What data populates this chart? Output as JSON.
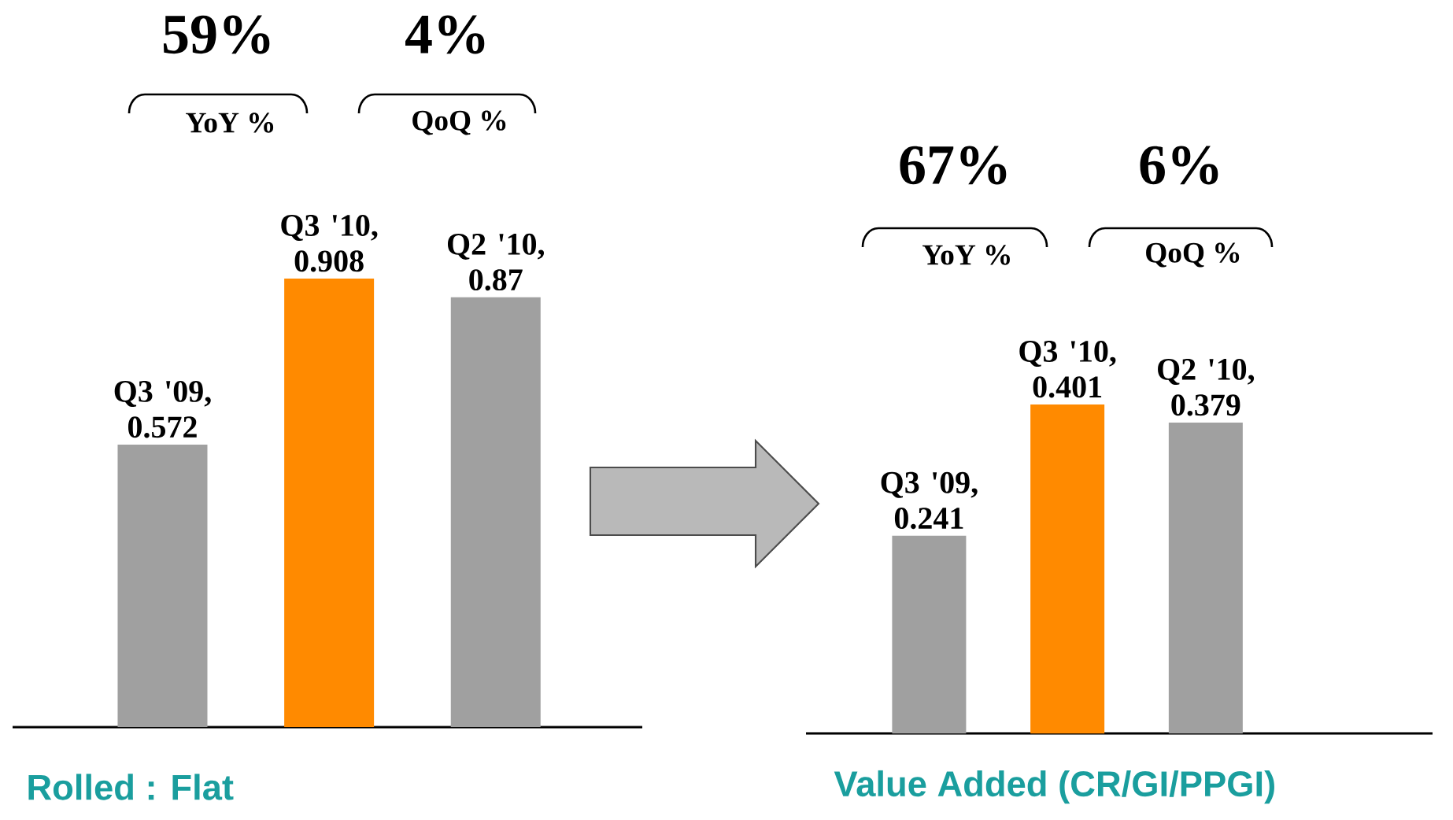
{
  "chart_data": [
    {
      "type": "bar",
      "categories": [
        null,
        null,
        null
      ],
      "values": [
        0.572,
        0.908,
        0.87
      ],
      "value_labels": [
        "Q3 '09, 0.572",
        "Q3 '10, 0.908",
        "Q2 '10, 0.87"
      ],
      "colors": [
        "#a0a0a0",
        "#ff8a00",
        "#a0a0a0"
      ],
      "xlabel": "Rolled : Flat",
      "annotations": [
        "59%",
        "YoY %",
        "4%",
        "QoQ %"
      ]
    },
    {
      "type": "bar",
      "categories": [
        null,
        null,
        null
      ],
      "values": [
        0.241,
        0.401,
        0.379
      ],
      "value_labels": [
        "Q3 '09, 0.241",
        "Q3 '10, 0.401",
        "Q2 '10, 0.379"
      ],
      "colors": [
        "#a0a0a0",
        "#ff8a00",
        "#a0a0a0"
      ],
      "xlabel": "Value Added (CR/GI/PPGI)",
      "annotations": [
        "67%",
        "YoY %",
        "6%",
        "QoQ %"
      ]
    }
  ]
}
